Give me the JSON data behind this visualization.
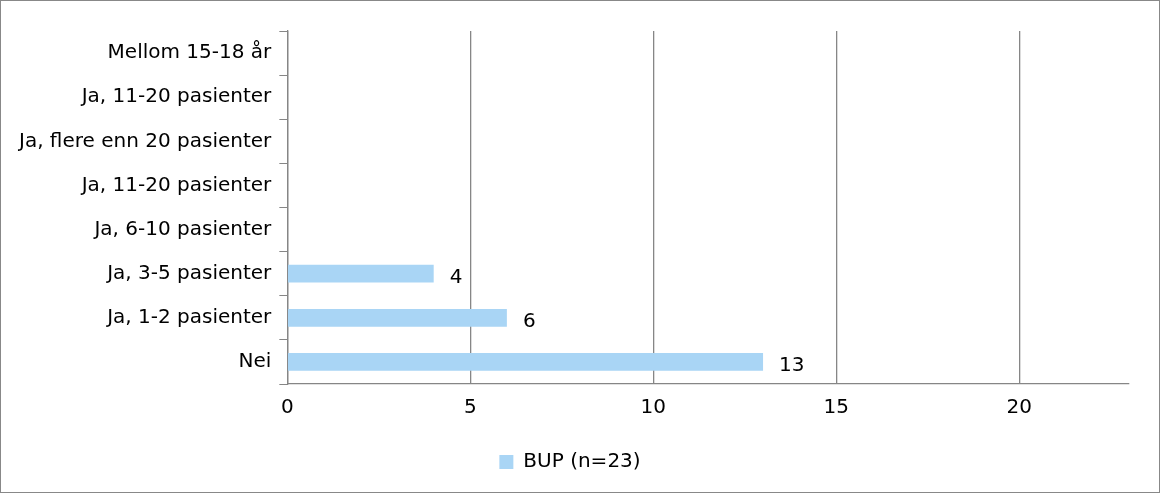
{
  "chart_data": {
    "type": "bar",
    "orientation": "horizontal",
    "categories": [
      "Mellom 15-18 år",
      "Ja, 11-20 pasienter",
      "Ja, flere enn 20 pasienter",
      "Ja, 11-20 pasienter",
      "Ja, 6-10 pasienter",
      "Ja, 3-5 pasienter",
      "Ja, 1-2 pasienter",
      "Nei"
    ],
    "series": [
      {
        "name": "BUP (n=23)",
        "color": "#a9d5f5",
        "values": [
          null,
          null,
          null,
          null,
          null,
          4,
          6,
          13
        ]
      }
    ],
    "xlim": [
      0,
      23
    ],
    "xticks": [
      0,
      5,
      10,
      15,
      20
    ],
    "grid": "x",
    "legend": "bottom",
    "data_labels": true
  }
}
